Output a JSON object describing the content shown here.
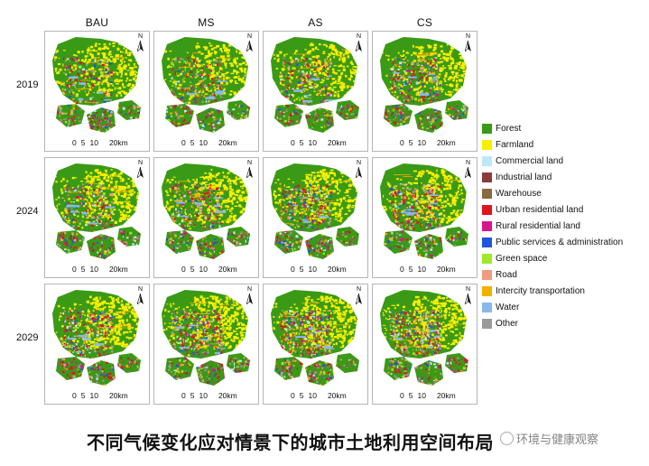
{
  "columns": [
    "BAU",
    "MS",
    "AS",
    "CS"
  ],
  "rows": [
    "2019",
    "2024",
    "2029"
  ],
  "map_panel": {
    "north_label": "N",
    "scale_ticks": [
      "0",
      "5",
      "10",
      "20km"
    ]
  },
  "legend": [
    {
      "label": "Forest",
      "color": "#3a9a16"
    },
    {
      "label": "Farmland",
      "color": "#f7ef00"
    },
    {
      "label": "Commercial land",
      "color": "#bfe8f5"
    },
    {
      "label": "Industrial land",
      "color": "#8b3a3a"
    },
    {
      "label": "Warehouse",
      "color": "#8b6a3e"
    },
    {
      "label": "Urban residential land",
      "color": "#e0141e"
    },
    {
      "label": "Rural residential land",
      "color": "#d6168c"
    },
    {
      "label": "Public services & administration",
      "color": "#1f55d8"
    },
    {
      "label": "Green space",
      "color": "#9fe82c"
    },
    {
      "label": "Road",
      "color": "#f09a82"
    },
    {
      "label": "Intercity transportation",
      "color": "#f2b000"
    },
    {
      "label": "Water",
      "color": "#8ab8ee"
    },
    {
      "label": "Other",
      "color": "#9a9a9a"
    }
  ],
  "caption": "不同气候变化应对情景下的城市土地利用空间布局",
  "watermark": "环境与健康观察"
}
